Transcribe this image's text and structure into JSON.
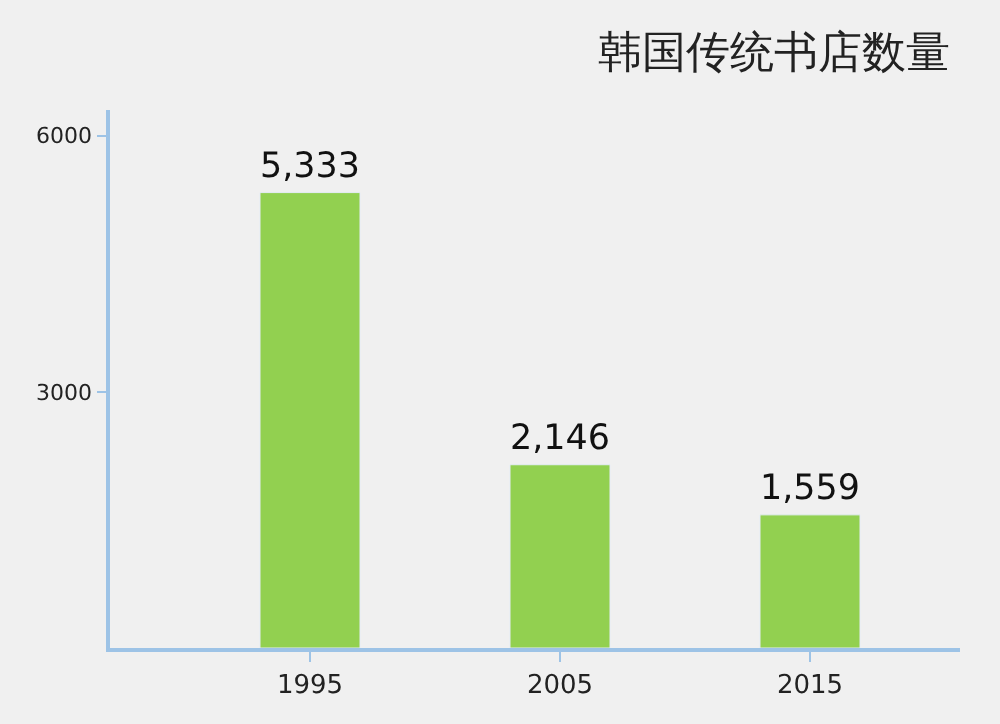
{
  "chart_data": {
    "type": "bar",
    "title": "韩国传统书店数量",
    "categories": [
      "1995",
      "2005",
      "2015"
    ],
    "values": [
      5333,
      2146,
      1559
    ],
    "value_labels": [
      "5,333",
      "2,146",
      "1,559"
    ],
    "color": "#92d050",
    "ylim": [
      0,
      6300
    ],
    "yticks": [
      3000,
      6000
    ],
    "grid": false,
    "legend": false
  }
}
